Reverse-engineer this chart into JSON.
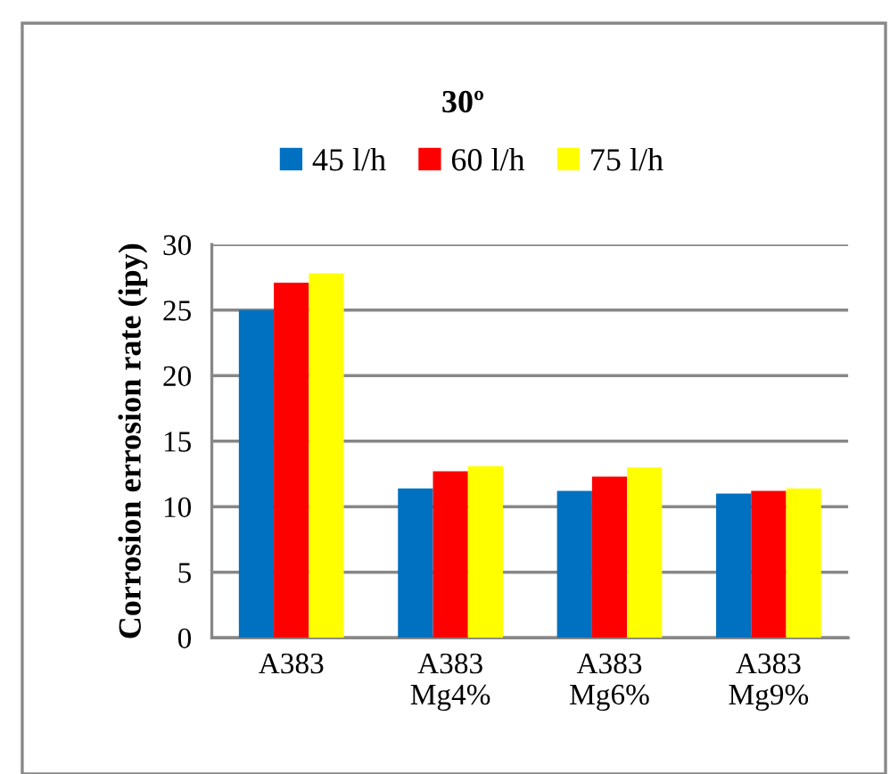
{
  "chart_data": {
    "type": "bar",
    "title": "30º",
    "ylabel": "Corrosion errosion rate (ipy)",
    "categories": [
      "A383",
      "A383\nMg4%",
      "A383\nMg6%",
      "A383\nMg9%"
    ],
    "series": [
      {
        "name": "45 l/h",
        "color": "#0070c0",
        "values": [
          25.0,
          11.4,
          11.2,
          11.0
        ]
      },
      {
        "name": "60 l/h",
        "color": "#ff0000",
        "values": [
          27.1,
          12.7,
          12.3,
          11.2
        ]
      },
      {
        "name": "75 l/h",
        "color": "#ffff00",
        "values": [
          27.8,
          13.1,
          13.0,
          11.4
        ]
      }
    ],
    "ylim": [
      0,
      30
    ],
    "yticks": [
      0,
      5,
      10,
      15,
      20,
      25,
      30
    ],
    "grid": "y",
    "legend": "top"
  }
}
